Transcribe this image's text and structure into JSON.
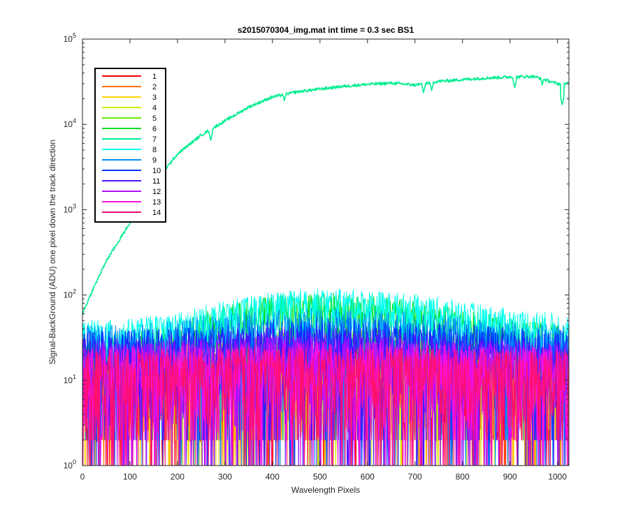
{
  "chart_data": {
    "type": "line",
    "title": "s2015070304_img.mat int time = 0.3 sec   BS1",
    "xlabel": "Wavelength Pixels",
    "ylabel": "Signal-BackGround (ADU) one pixel down the track direction",
    "xlim": [
      0,
      1024
    ],
    "ylim": [
      1,
      100000
    ],
    "yscale": "log",
    "x_ticks": [
      0,
      100,
      200,
      300,
      400,
      500,
      600,
      700,
      800,
      900,
      1000
    ],
    "y_ticks": [
      {
        "value": 1,
        "base": "10",
        "exp": "0"
      },
      {
        "value": 10,
        "base": "10",
        "exp": "1"
      },
      {
        "value": 100,
        "base": "10",
        "exp": "2"
      },
      {
        "value": 1000,
        "base": "10",
        "exp": "3"
      },
      {
        "value": 10000,
        "base": "10",
        "exp": "4"
      },
      {
        "value": 100000,
        "base": "10",
        "exp": "5"
      }
    ],
    "grid": false,
    "legend_position": "top-left",
    "series": [
      {
        "name": "1",
        "color": "#ff0000",
        "profile": {
          "x": [
            0,
            100,
            200,
            300,
            400,
            500,
            600,
            700,
            800,
            900,
            1024
          ],
          "y": [
            12,
            12,
            12,
            12,
            12,
            12,
            12,
            12,
            12,
            12,
            12
          ]
        }
      },
      {
        "name": "2",
        "color": "#ff7000",
        "profile": {
          "x": [
            0,
            100,
            200,
            300,
            400,
            500,
            600,
            700,
            800,
            900,
            1024
          ],
          "y": [
            12,
            12,
            12,
            12,
            12,
            12,
            12,
            12,
            12,
            12,
            12
          ]
        }
      },
      {
        "name": "3",
        "color": "#ffd400",
        "profile": {
          "x": [
            0,
            100,
            200,
            300,
            400,
            500,
            600,
            700,
            800,
            900,
            1024
          ],
          "y": [
            12,
            12,
            12,
            12,
            12,
            12,
            12,
            12,
            12,
            12,
            12
          ]
        }
      },
      {
        "name": "4",
        "color": "#c8f000",
        "profile": {
          "x": [
            0,
            100,
            200,
            300,
            400,
            500,
            600,
            700,
            800,
            900,
            1024
          ],
          "y": [
            14,
            14,
            15,
            16,
            16,
            16,
            16,
            16,
            15,
            14,
            14
          ]
        }
      },
      {
        "name": "5",
        "color": "#66ee00",
        "profile": {
          "x": [
            0,
            100,
            200,
            300,
            400,
            500,
            600,
            700,
            800,
            900,
            1024
          ],
          "y": [
            18,
            19,
            22,
            28,
            34,
            36,
            34,
            30,
            25,
            21,
            18
          ]
        }
      },
      {
        "name": "6",
        "color": "#00e020",
        "profile": {
          "x": [
            0,
            100,
            200,
            300,
            400,
            500,
            600,
            700,
            800,
            900,
            1024
          ],
          "y": [
            28,
            30,
            40,
            60,
            80,
            85,
            80,
            68,
            55,
            42,
            35
          ]
        }
      },
      {
        "name": "7",
        "color": "#00ee90",
        "profile": {
          "x": [
            0,
            20,
            50,
            100,
            150,
            200,
            250,
            300,
            350,
            400,
            450,
            500,
            550,
            600,
            650,
            700,
            750,
            800,
            850,
            900,
            950,
            1000,
            1024
          ],
          "y": [
            60,
            110,
            250,
            700,
            2000,
            4500,
            7500,
            11000,
            16000,
            21000,
            24000,
            26000,
            28000,
            29500,
            30500,
            29000,
            32000,
            33500,
            35000,
            36000,
            36500,
            30000,
            30000
          ]
        },
        "dips": [
          {
            "x": 270,
            "y": 6500
          },
          {
            "x": 425,
            "y": 19000
          },
          {
            "x": 718,
            "y": 23500
          },
          {
            "x": 735,
            "y": 25000
          },
          {
            "x": 910,
            "y": 27000
          },
          {
            "x": 968,
            "y": 29000
          },
          {
            "x": 1010,
            "y": 17000
          }
        ]
      },
      {
        "name": "8",
        "color": "#00ffee",
        "profile": {
          "x": [
            0,
            100,
            200,
            300,
            400,
            500,
            600,
            700,
            800,
            900,
            1024
          ],
          "y": [
            40,
            42,
            50,
            68,
            88,
            95,
            92,
            82,
            68,
            55,
            48
          ]
        }
      },
      {
        "name": "9",
        "color": "#0090ff",
        "profile": {
          "x": [
            0,
            100,
            200,
            300,
            400,
            500,
            600,
            700,
            800,
            900,
            1024
          ],
          "y": [
            26,
            26,
            30,
            34,
            38,
            40,
            38,
            36,
            32,
            28,
            26
          ]
        }
      },
      {
        "name": "10",
        "color": "#0030ff",
        "profile": {
          "x": [
            0,
            100,
            200,
            300,
            400,
            500,
            600,
            700,
            800,
            900,
            1024
          ],
          "y": [
            22,
            22,
            24,
            26,
            30,
            32,
            30,
            28,
            26,
            24,
            22
          ]
        }
      },
      {
        "name": "11",
        "color": "#5010ff",
        "profile": {
          "x": [
            0,
            100,
            200,
            300,
            400,
            500,
            600,
            700,
            800,
            900,
            1024
          ],
          "y": [
            18,
            18,
            20,
            22,
            24,
            24,
            24,
            22,
            20,
            19,
            18
          ]
        }
      },
      {
        "name": "12",
        "color": "#b010ff",
        "profile": {
          "x": [
            0,
            100,
            200,
            300,
            400,
            500,
            600,
            700,
            800,
            900,
            1024
          ],
          "y": [
            16,
            16,
            17,
            18,
            19,
            20,
            19,
            18,
            17,
            16,
            16
          ]
        }
      },
      {
        "name": "13",
        "color": "#ff10e0",
        "profile": {
          "x": [
            0,
            100,
            200,
            300,
            400,
            500,
            600,
            700,
            800,
            900,
            1024
          ],
          "y": [
            14,
            14,
            15,
            15,
            16,
            16,
            16,
            15,
            15,
            14,
            14
          ]
        }
      },
      {
        "name": "14",
        "color": "#ff1070",
        "profile": {
          "x": [
            0,
            100,
            200,
            300,
            400,
            500,
            600,
            700,
            800,
            900,
            1024
          ],
          "y": [
            13,
            13,
            13,
            14,
            14,
            14,
            14,
            14,
            13,
            13,
            13
          ]
        }
      }
    ]
  }
}
